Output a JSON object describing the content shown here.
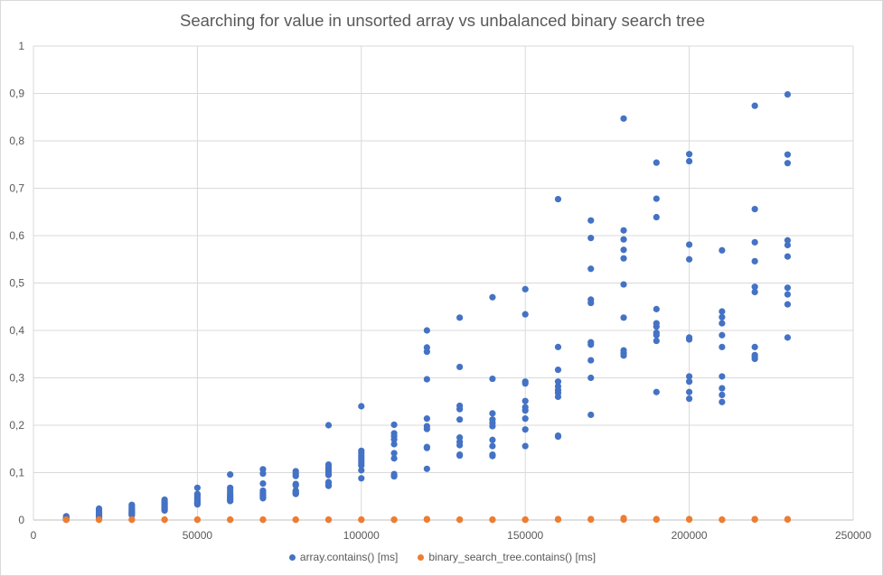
{
  "chart_data": {
    "type": "scatter",
    "title": "Searching for value in unsorted array vs unbalanced binary search tree",
    "xlabel": "",
    "ylabel": "",
    "xlim": [
      0,
      250000
    ],
    "ylim": [
      0,
      1
    ],
    "x_ticks": [
      "0",
      "50000",
      "100000",
      "150000",
      "200000",
      "250000"
    ],
    "y_ticks": [
      "0",
      "0,1",
      "0,2",
      "0,3",
      "0,4",
      "0,5",
      "0,6",
      "0,7",
      "0,8",
      "0,9",
      "1"
    ],
    "grid": true,
    "legend_position": "bottom",
    "series": [
      {
        "name": "array.contains() [ms]",
        "color": "#4472C4",
        "points": [
          [
            10000,
            0.008
          ],
          [
            10000,
            0.006
          ],
          [
            10000,
            0.004
          ],
          [
            10000,
            0.003
          ],
          [
            10000,
            0.002
          ],
          [
            10000,
            0.002
          ],
          [
            10000,
            0.001
          ],
          [
            10000,
            0.001
          ],
          [
            10000,
            0.001
          ],
          [
            10000,
            0.001
          ],
          [
            20000,
            0.024
          ],
          [
            20000,
            0.021
          ],
          [
            20000,
            0.018
          ],
          [
            20000,
            0.015
          ],
          [
            20000,
            0.012
          ],
          [
            20000,
            0.01
          ],
          [
            20000,
            0.008
          ],
          [
            20000,
            0.006
          ],
          [
            20000,
            0.005
          ],
          [
            20000,
            0.004
          ],
          [
            30000,
            0.032
          ],
          [
            30000,
            0.028
          ],
          [
            30000,
            0.025
          ],
          [
            30000,
            0.022
          ],
          [
            30000,
            0.02
          ],
          [
            30000,
            0.018
          ],
          [
            30000,
            0.016
          ],
          [
            30000,
            0.014
          ],
          [
            30000,
            0.012
          ],
          [
            30000,
            0.01
          ],
          [
            40000,
            0.043
          ],
          [
            40000,
            0.04
          ],
          [
            40000,
            0.037
          ],
          [
            40000,
            0.034
          ],
          [
            40000,
            0.031
          ],
          [
            40000,
            0.028
          ],
          [
            40000,
            0.026
          ],
          [
            40000,
            0.024
          ],
          [
            40000,
            0.022
          ],
          [
            40000,
            0.02
          ],
          [
            50000,
            0.068
          ],
          [
            50000,
            0.055
          ],
          [
            50000,
            0.052
          ],
          [
            50000,
            0.048
          ],
          [
            50000,
            0.045
          ],
          [
            50000,
            0.042
          ],
          [
            50000,
            0.04
          ],
          [
            50000,
            0.037
          ],
          [
            50000,
            0.035
          ],
          [
            50000,
            0.033
          ],
          [
            60000,
            0.096
          ],
          [
            60000,
            0.068
          ],
          [
            60000,
            0.063
          ],
          [
            60000,
            0.058
          ],
          [
            60000,
            0.053
          ],
          [
            60000,
            0.05
          ],
          [
            60000,
            0.047
          ],
          [
            60000,
            0.045
          ],
          [
            60000,
            0.042
          ],
          [
            60000,
            0.04
          ],
          [
            70000,
            0.107
          ],
          [
            70000,
            0.098
          ],
          [
            70000,
            0.077
          ],
          [
            70000,
            0.062
          ],
          [
            70000,
            0.058
          ],
          [
            70000,
            0.055
          ],
          [
            70000,
            0.052
          ],
          [
            70000,
            0.05
          ],
          [
            70000,
            0.048
          ],
          [
            70000,
            0.046
          ],
          [
            80000,
            0.103
          ],
          [
            80000,
            0.098
          ],
          [
            80000,
            0.093
          ],
          [
            80000,
            0.076
          ],
          [
            80000,
            0.073
          ],
          [
            80000,
            0.062
          ],
          [
            80000,
            0.06
          ],
          [
            80000,
            0.057
          ],
          [
            80000,
            0.056
          ],
          [
            80000,
            0.055
          ],
          [
            90000,
            0.2
          ],
          [
            90000,
            0.117
          ],
          [
            90000,
            0.111
          ],
          [
            90000,
            0.107
          ],
          [
            90000,
            0.103
          ],
          [
            90000,
            0.098
          ],
          [
            90000,
            0.095
          ],
          [
            90000,
            0.08
          ],
          [
            90000,
            0.075
          ],
          [
            90000,
            0.072
          ],
          [
            100000,
            0.24
          ],
          [
            100000,
            0.146
          ],
          [
            100000,
            0.141
          ],
          [
            100000,
            0.135
          ],
          [
            100000,
            0.13
          ],
          [
            100000,
            0.125
          ],
          [
            100000,
            0.12
          ],
          [
            100000,
            0.115
          ],
          [
            100000,
            0.105
          ],
          [
            100000,
            0.088
          ],
          [
            110000,
            0.201
          ],
          [
            110000,
            0.183
          ],
          [
            110000,
            0.177
          ],
          [
            110000,
            0.17
          ],
          [
            110000,
            0.16
          ],
          [
            110000,
            0.141
          ],
          [
            110000,
            0.13
          ],
          [
            110000,
            0.097
          ],
          [
            110000,
            0.093
          ],
          [
            110000,
            0.092
          ],
          [
            120000,
            0.4
          ],
          [
            120000,
            0.364
          ],
          [
            120000,
            0.355
          ],
          [
            120000,
            0.297
          ],
          [
            120000,
            0.214
          ],
          [
            120000,
            0.198
          ],
          [
            120000,
            0.192
          ],
          [
            120000,
            0.154
          ],
          [
            120000,
            0.152
          ],
          [
            120000,
            0.108
          ],
          [
            130000,
            0.427
          ],
          [
            130000,
            0.323
          ],
          [
            130000,
            0.241
          ],
          [
            130000,
            0.234
          ],
          [
            130000,
            0.212
          ],
          [
            130000,
            0.174
          ],
          [
            130000,
            0.165
          ],
          [
            130000,
            0.158
          ],
          [
            130000,
            0.138
          ],
          [
            130000,
            0.136
          ],
          [
            140000,
            0.47
          ],
          [
            140000,
            0.298
          ],
          [
            140000,
            0.225
          ],
          [
            140000,
            0.212
          ],
          [
            140000,
            0.205
          ],
          [
            140000,
            0.198
          ],
          [
            140000,
            0.169
          ],
          [
            140000,
            0.156
          ],
          [
            140000,
            0.138
          ],
          [
            140000,
            0.135
          ],
          [
            150000,
            0.487
          ],
          [
            150000,
            0.434
          ],
          [
            150000,
            0.292
          ],
          [
            150000,
            0.288
          ],
          [
            150000,
            0.251
          ],
          [
            150000,
            0.238
          ],
          [
            150000,
            0.231
          ],
          [
            150000,
            0.214
          ],
          [
            150000,
            0.191
          ],
          [
            150000,
            0.156
          ],
          [
            160000,
            0.677
          ],
          [
            160000,
            0.365
          ],
          [
            160000,
            0.317
          ],
          [
            160000,
            0.292
          ],
          [
            160000,
            0.282
          ],
          [
            160000,
            0.274
          ],
          [
            160000,
            0.268
          ],
          [
            160000,
            0.26
          ],
          [
            160000,
            0.178
          ],
          [
            160000,
            0.176
          ],
          [
            170000,
            0.632
          ],
          [
            170000,
            0.595
          ],
          [
            170000,
            0.53
          ],
          [
            170000,
            0.465
          ],
          [
            170000,
            0.458
          ],
          [
            170000,
            0.375
          ],
          [
            170000,
            0.37
          ],
          [
            170000,
            0.337
          ],
          [
            170000,
            0.3
          ],
          [
            170000,
            0.222
          ],
          [
            180000,
            0.847
          ],
          [
            180000,
            0.611
          ],
          [
            180000,
            0.592
          ],
          [
            180000,
            0.57
          ],
          [
            180000,
            0.552
          ],
          [
            180000,
            0.497
          ],
          [
            180000,
            0.427
          ],
          [
            180000,
            0.358
          ],
          [
            180000,
            0.352
          ],
          [
            180000,
            0.347
          ],
          [
            190000,
            0.754
          ],
          [
            190000,
            0.678
          ],
          [
            190000,
            0.639
          ],
          [
            190000,
            0.445
          ],
          [
            190000,
            0.415
          ],
          [
            190000,
            0.408
          ],
          [
            190000,
            0.395
          ],
          [
            190000,
            0.39
          ],
          [
            190000,
            0.378
          ],
          [
            190000,
            0.27
          ],
          [
            200000,
            0.772
          ],
          [
            200000,
            0.757
          ],
          [
            200000,
            0.581
          ],
          [
            200000,
            0.55
          ],
          [
            200000,
            0.385
          ],
          [
            200000,
            0.381
          ],
          [
            200000,
            0.303
          ],
          [
            200000,
            0.292
          ],
          [
            200000,
            0.27
          ],
          [
            200000,
            0.256
          ],
          [
            210000,
            0.569
          ],
          [
            210000,
            0.44
          ],
          [
            210000,
            0.428
          ],
          [
            210000,
            0.415
          ],
          [
            210000,
            0.39
          ],
          [
            210000,
            0.365
          ],
          [
            210000,
            0.303
          ],
          [
            210000,
            0.278
          ],
          [
            210000,
            0.264
          ],
          [
            210000,
            0.249
          ],
          [
            220000,
            0.874
          ],
          [
            220000,
            0.656
          ],
          [
            220000,
            0.586
          ],
          [
            220000,
            0.546
          ],
          [
            220000,
            0.492
          ],
          [
            220000,
            0.481
          ],
          [
            220000,
            0.365
          ],
          [
            220000,
            0.348
          ],
          [
            220000,
            0.344
          ],
          [
            220000,
            0.34
          ],
          [
            230000,
            0.898
          ],
          [
            230000,
            0.771
          ],
          [
            230000,
            0.753
          ],
          [
            230000,
            0.59
          ],
          [
            230000,
            0.58
          ],
          [
            230000,
            0.556
          ],
          [
            230000,
            0.49
          ],
          [
            230000,
            0.476
          ],
          [
            230000,
            0.455
          ],
          [
            230000,
            0.385
          ]
        ]
      },
      {
        "name": "binary_search_tree.contains() [ms]",
        "color": "#ED7D31",
        "points": [
          [
            10000,
            0.0005
          ],
          [
            10000,
            0.001
          ],
          [
            20000,
            0.0005
          ],
          [
            20000,
            0.001
          ],
          [
            30000,
            0.0005
          ],
          [
            30000,
            0.001
          ],
          [
            40000,
            0.0005
          ],
          [
            40000,
            0.001
          ],
          [
            50000,
            0.0005
          ],
          [
            50000,
            0.001
          ],
          [
            60000,
            0.0005
          ],
          [
            60000,
            0.001
          ],
          [
            70000,
            0.0005
          ],
          [
            70000,
            0.001
          ],
          [
            80000,
            0.0005
          ],
          [
            80000,
            0.001
          ],
          [
            90000,
            0.0005
          ],
          [
            90000,
            0.001
          ],
          [
            100000,
            0.0005
          ],
          [
            100000,
            0.001
          ],
          [
            110000,
            0.0005
          ],
          [
            110000,
            0.001
          ],
          [
            120000,
            0.001
          ],
          [
            120000,
            0.002
          ],
          [
            130000,
            0.0005
          ],
          [
            130000,
            0.001
          ],
          [
            140000,
            0.0005
          ],
          [
            140000,
            0.001
          ],
          [
            150000,
            0.0005
          ],
          [
            150000,
            0.001
          ],
          [
            160000,
            0.001
          ],
          [
            160000,
            0.002
          ],
          [
            170000,
            0.001
          ],
          [
            170000,
            0.002
          ],
          [
            180000,
            0.001
          ],
          [
            180000,
            0.004
          ],
          [
            190000,
            0.001
          ],
          [
            190000,
            0.002
          ],
          [
            200000,
            0.001
          ],
          [
            200000,
            0.002
          ],
          [
            210000,
            0.0005
          ],
          [
            210000,
            0.001
          ],
          [
            220000,
            0.001
          ],
          [
            220000,
            0.002
          ],
          [
            230000,
            0.001
          ],
          [
            230000,
            0.002
          ]
        ]
      }
    ]
  }
}
